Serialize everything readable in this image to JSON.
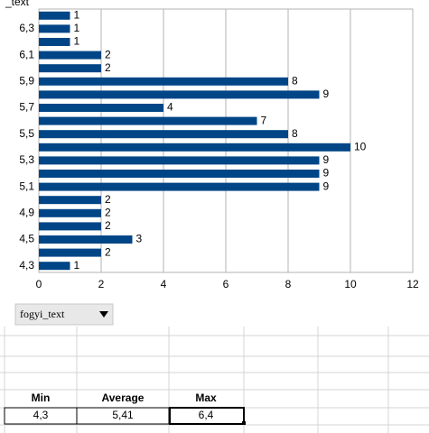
{
  "chart_data": {
    "type": "bar",
    "orientation": "horizontal",
    "title": "_text",
    "categories": [
      null,
      "6,3",
      null,
      "6,1",
      null,
      "5,9",
      null,
      "5,7",
      null,
      "5,5",
      null,
      "5,3",
      null,
      "5,1",
      null,
      "4,9",
      null,
      "4,5",
      null,
      "4,3"
    ],
    "values": [
      1,
      1,
      1,
      2,
      2,
      8,
      9,
      4,
      7,
      8,
      10,
      9,
      9,
      9,
      2,
      2,
      2,
      3,
      2,
      1
    ],
    "color": "#004586",
    "xlim": [
      0,
      12
    ],
    "xticks": [
      0,
      2,
      4,
      6,
      8,
      10,
      12
    ],
    "grid": true
  },
  "dropdown": {
    "label": "fogyi_text"
  },
  "table": {
    "headers": [
      "Min",
      "Average",
      "Max"
    ],
    "rows": [
      [
        "4,3",
        "5,41",
        "6,4"
      ]
    ]
  }
}
